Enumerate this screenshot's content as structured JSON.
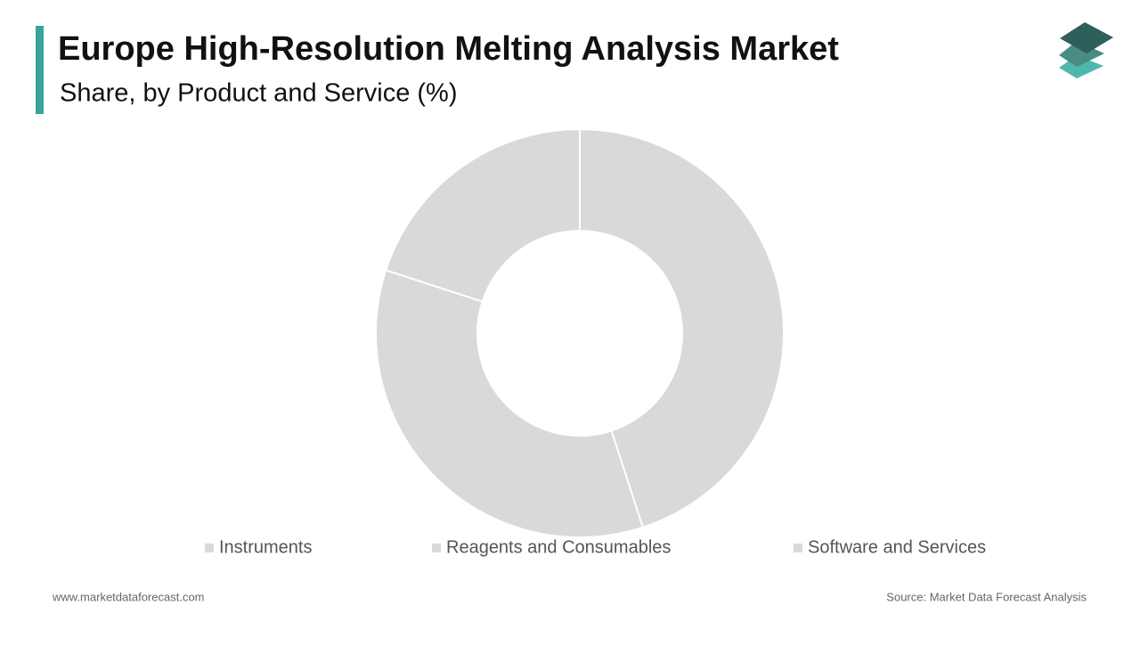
{
  "chart_data": {
    "type": "donut",
    "title": "Europe High-Resolution Melting Analysis Market",
    "subtitle": "Share, by Product and Service (%)",
    "categories": [
      "Instruments",
      "Reagents and Consumables",
      "Software and Services"
    ],
    "values": [
      45,
      35,
      20
    ],
    "colors": [
      "#d9d9d9",
      "#d9d9d9",
      "#d9d9d9"
    ]
  },
  "footer": {
    "website": "www.marketdataforecast.com",
    "source": "Source: Market Data Forecast Analysis"
  }
}
